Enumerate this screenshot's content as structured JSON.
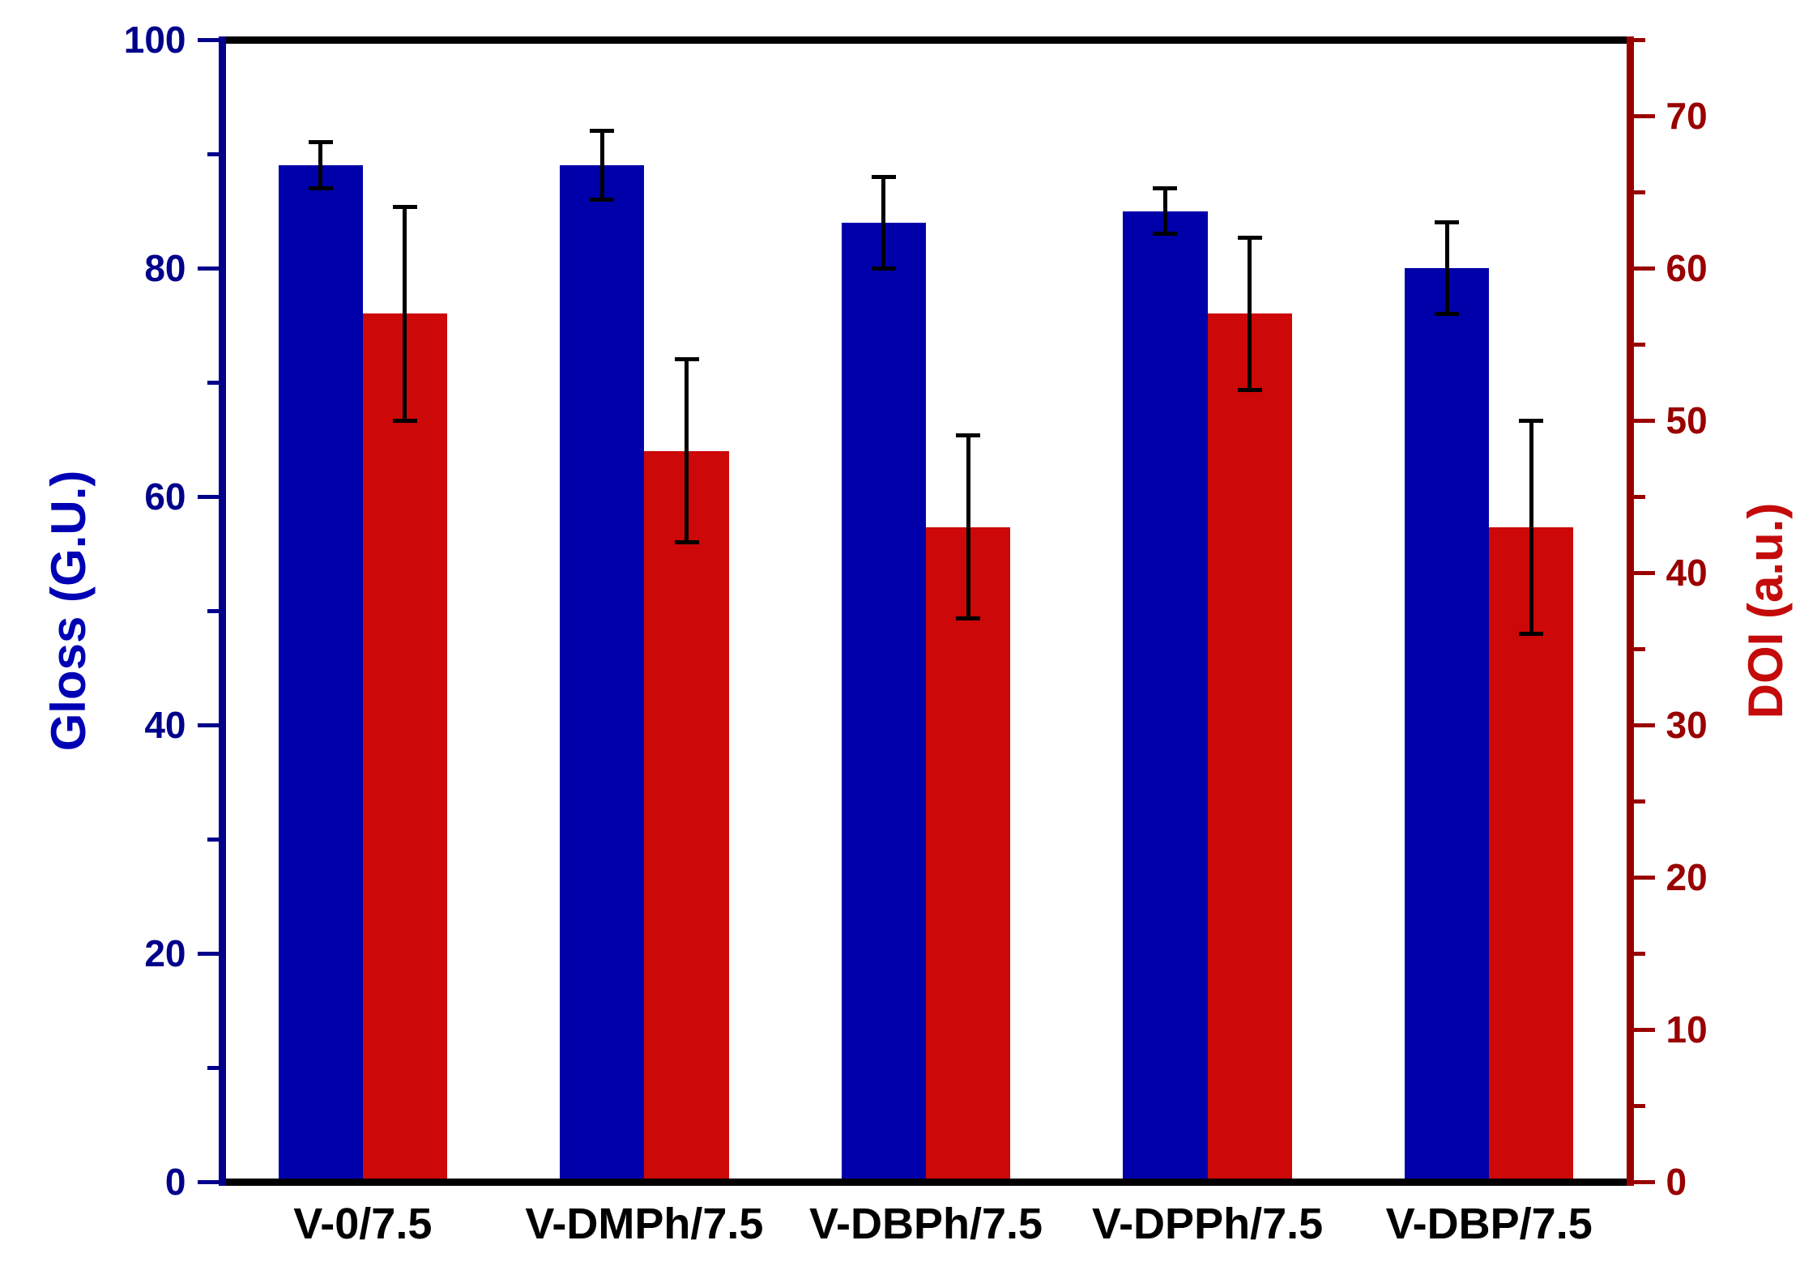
{
  "chart_data": {
    "type": "bar",
    "title": "",
    "categories": [
      "V-0/7.5",
      "V-DMPh/7.5",
      "V-DBPh/7.5",
      "V-DPPh/7.5",
      "V-DBP/7.5"
    ],
    "series": [
      {
        "name": "Gloss",
        "axis": "left",
        "color": "#0000AA",
        "values": [
          89,
          89,
          84,
          85,
          80
        ],
        "errors": [
          2,
          3,
          4,
          2,
          4
        ]
      },
      {
        "name": "DOI",
        "axis": "right",
        "color": "#CC0808",
        "values": [
          57,
          48,
          43,
          57,
          43
        ],
        "errors": [
          7,
          6,
          6,
          5,
          7
        ]
      }
    ],
    "left_axis": {
      "label": "Gloss (G.U.)",
      "min": 0,
      "max": 100,
      "major_step": 20,
      "minor_step": 10,
      "tick_labels": [
        "0",
        "20",
        "40",
        "60",
        "80",
        "100"
      ],
      "axis_color": "#00008B",
      "title_color": "#0000B4"
    },
    "right_axis": {
      "label": "DOI (a.u.)",
      "min": 0,
      "max": 75,
      "major_step": 10,
      "minor_step": 5,
      "tick_labels": [
        "0",
        "10",
        "20",
        "30",
        "40",
        "50",
        "60",
        "70"
      ],
      "axis_color": "#990000",
      "title_color": "#C40A0A"
    },
    "grid": "off",
    "legend": "none",
    "frame_color": "#000000",
    "error_bar_color": "#000000"
  }
}
